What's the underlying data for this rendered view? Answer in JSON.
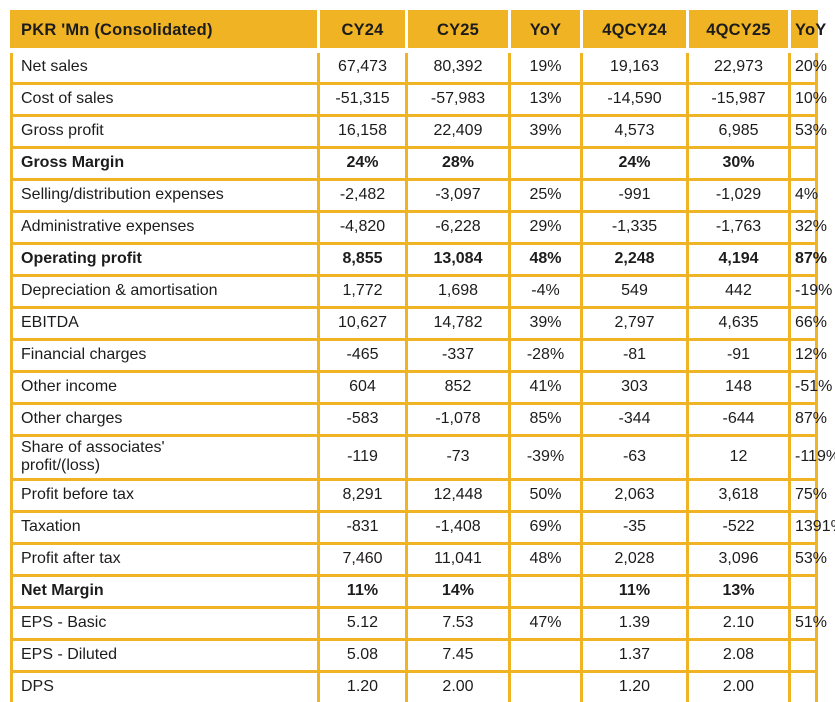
{
  "colors": {
    "accent_gold": "#F0B323",
    "text": "#1C1C1C",
    "background": "#FFFFFF"
  },
  "table": {
    "columns": [
      "PKR 'Mn (Consolidated)",
      "CY24",
      "CY25",
      "YoY",
      "4QCY24",
      "4QCY25",
      "YoY"
    ],
    "rows": [
      {
        "label": "Net sales",
        "bold": false,
        "values": [
          "67,473",
          "80,392",
          "19%",
          "19,163",
          "22,973",
          "20%"
        ]
      },
      {
        "label": "Cost of sales",
        "bold": false,
        "values": [
          "-51,315",
          "-57,983",
          "13%",
          "-14,590",
          "-15,987",
          "10%"
        ]
      },
      {
        "label": "Gross profit",
        "bold": false,
        "values": [
          "16,158",
          "22,409",
          "39%",
          "4,573",
          "6,985",
          "53%"
        ]
      },
      {
        "label": "Gross Margin",
        "bold": true,
        "values": [
          "24%",
          "28%",
          "",
          "24%",
          "30%",
          ""
        ]
      },
      {
        "label": "Selling/distribution expenses",
        "bold": false,
        "values": [
          "-2,482",
          "-3,097",
          "25%",
          "-991",
          "-1,029",
          "4%"
        ]
      },
      {
        "label": "Administrative expenses",
        "bold": false,
        "values": [
          "-4,820",
          "-6,228",
          "29%",
          "-1,335",
          "-1,763",
          "32%"
        ]
      },
      {
        "label": "Operating profit",
        "bold": true,
        "values": [
          "8,855",
          "13,084",
          "48%",
          "2,248",
          "4,194",
          "87%"
        ]
      },
      {
        "label": "Depreciation & amortisation",
        "bold": false,
        "values": [
          "1,772",
          "1,698",
          "-4%",
          "549",
          "442",
          "-19%"
        ]
      },
      {
        "label": "EBITDA",
        "bold": false,
        "values": [
          "10,627",
          "14,782",
          "39%",
          "2,797",
          "4,635",
          "66%"
        ]
      },
      {
        "label": "Financial charges",
        "bold": false,
        "values": [
          "-465",
          "-337",
          "-28%",
          "-81",
          "-91",
          "12%"
        ]
      },
      {
        "label": "Other income",
        "bold": false,
        "values": [
          "604",
          "852",
          "41%",
          "303",
          "148",
          "-51%"
        ]
      },
      {
        "label": "Other charges",
        "bold": false,
        "values": [
          "-583",
          "-1,078",
          "85%",
          "-344",
          "-644",
          "87%"
        ]
      },
      {
        "label": "Share of associates'\nprofit/(loss)",
        "bold": false,
        "values": [
          "-119",
          "-73",
          "-39%",
          "-63",
          "12",
          "-119%"
        ]
      },
      {
        "label": "Profit before tax",
        "bold": false,
        "values": [
          "8,291",
          "12,448",
          "50%",
          "2,063",
          "3,618",
          "75%"
        ]
      },
      {
        "label": "Taxation",
        "bold": false,
        "values": [
          "-831",
          "-1,408",
          "69%",
          "-35",
          "-522",
          "1391%"
        ]
      },
      {
        "label": "Profit after tax",
        "bold": false,
        "values": [
          "7,460",
          "11,041",
          "48%",
          "2,028",
          "3,096",
          "53%"
        ]
      },
      {
        "label": "Net Margin",
        "bold": true,
        "values": [
          "11%",
          "14%",
          "",
          "11%",
          "13%",
          ""
        ]
      },
      {
        "label": "EPS - Basic",
        "bold": false,
        "values": [
          "5.12",
          "7.53",
          "47%",
          "1.39",
          "2.10",
          "51%"
        ]
      },
      {
        "label": "EPS - Diluted",
        "bold": false,
        "values": [
          "5.08",
          "7.45",
          "",
          "1.37",
          "2.08",
          ""
        ]
      },
      {
        "label": "DPS",
        "bold": false,
        "values": [
          "1.20",
          "2.00",
          "",
          "1.20",
          "2.00",
          ""
        ]
      }
    ]
  }
}
